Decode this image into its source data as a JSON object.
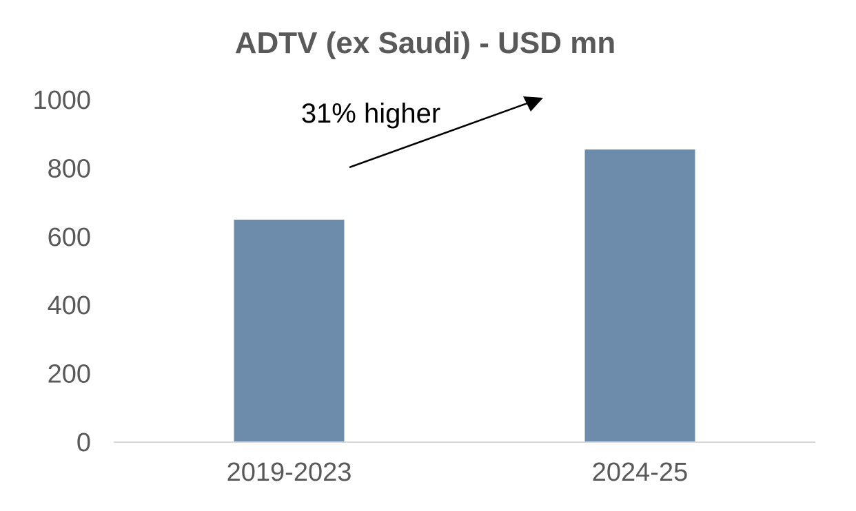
{
  "chart_data": {
    "type": "bar",
    "title": "ADTV (ex Saudi) -  USD mn",
    "categories": [
      "2019-2023",
      "2024-25"
    ],
    "values": [
      650,
      855
    ],
    "ylim": [
      0,
      1000
    ],
    "yticks": [
      "0",
      "200",
      "400",
      "600",
      "800",
      "1000"
    ],
    "ytick_values": [
      0,
      200,
      400,
      600,
      800,
      1000
    ],
    "grid": false,
    "legend": "none",
    "bar_color": "#6D8CAB",
    "axis_color": "#D9D9D9",
    "text_color": "#595959",
    "annotations": [
      {
        "text": "31% higher",
        "type": "arrow",
        "color": "#000000"
      }
    ]
  }
}
